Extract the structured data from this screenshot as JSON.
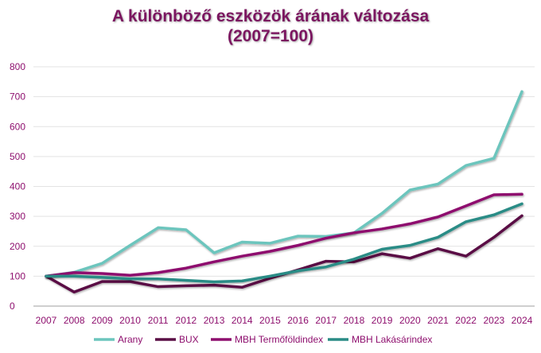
{
  "chart_data": {
    "type": "line",
    "title": "A különböző eszközök árának változása",
    "subtitle": "(2007=100)",
    "xlabel": "",
    "ylabel": "",
    "ylim": [
      0,
      800
    ],
    "yticks": [
      "0",
      "100",
      "200",
      "300",
      "400",
      "500",
      "600",
      "700",
      "800"
    ],
    "categories": [
      "2007",
      "2008",
      "2009",
      "2010",
      "2011",
      "2012",
      "2013",
      "2014",
      "2015",
      "2016",
      "2017",
      "2018",
      "2019",
      "2020",
      "2021",
      "2022",
      "2023",
      "2024"
    ],
    "grid": true,
    "legend_position": "bottom",
    "series": [
      {
        "name": "Arany",
        "color": "#6cc5bd",
        "values": [
          100,
          113,
          143,
          203,
          262,
          255,
          178,
          214,
          210,
          234,
          233,
          245,
          310,
          388,
          408,
          470,
          494,
          717
        ]
      },
      {
        "name": "BUX",
        "color": "#5a0f45",
        "values": [
          100,
          47,
          82,
          82,
          65,
          68,
          70,
          63,
          93,
          121,
          150,
          148,
          175,
          160,
          192,
          167,
          230,
          302
        ]
      },
      {
        "name": "MBH Termőföldindex",
        "color": "#8e0f6e",
        "values": [
          100,
          112,
          109,
          103,
          112,
          127,
          148,
          167,
          183,
          203,
          227,
          245,
          258,
          275,
          298,
          335,
          372,
          374
        ]
      },
      {
        "name": "MBH Lakásárindex",
        "color": "#2a8c86",
        "values": [
          100,
          100,
          96,
          91,
          91,
          86,
          81,
          84,
          100,
          118,
          131,
          157,
          190,
          203,
          230,
          282,
          305,
          342
        ]
      }
    ]
  }
}
